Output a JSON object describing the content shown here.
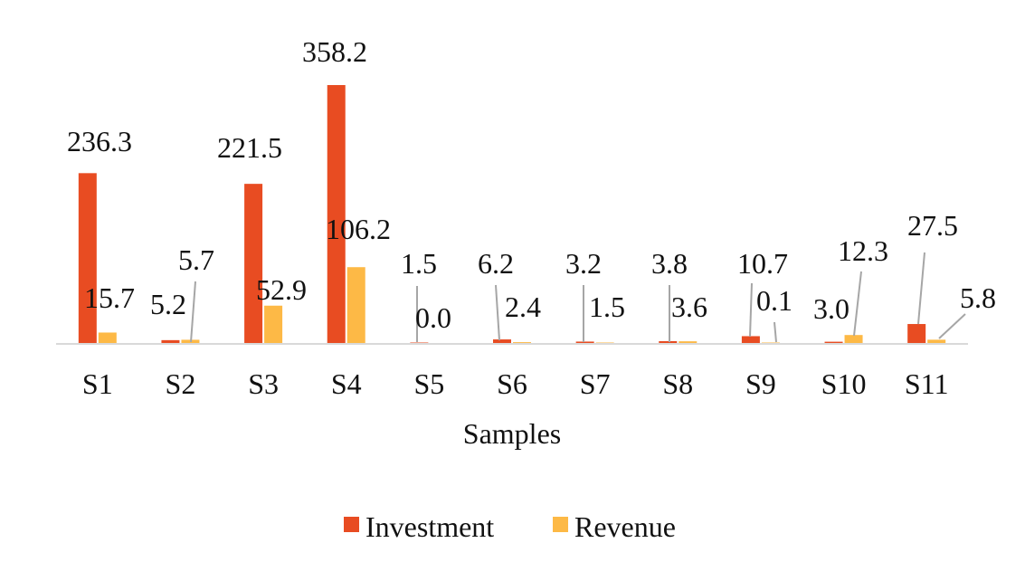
{
  "chart_data": {
    "type": "bar",
    "title": "",
    "xlabel": "Samples",
    "ylabel": "",
    "categories": [
      "S1",
      "S2",
      "S3",
      "S4",
      "S5",
      "S6",
      "S7",
      "S8",
      "S9",
      "S10",
      "S11"
    ],
    "series": [
      {
        "name": "Investment",
        "color": "#E84C22",
        "values": [
          236.3,
          5.2,
          221.5,
          358.2,
          1.5,
          6.2,
          3.2,
          3.8,
          10.7,
          3.0,
          27.5
        ],
        "labels": [
          "236.3",
          "5.2",
          "221.5",
          "358.2",
          "1.5",
          "6.2",
          "3.2",
          "3.8",
          "10.7",
          "3.0",
          "27.5"
        ]
      },
      {
        "name": "Revenue",
        "color": "#FDB946",
        "values": [
          15.7,
          5.7,
          52.9,
          106.2,
          0.0,
          2.4,
          1.5,
          3.6,
          0.1,
          12.3,
          5.8
        ],
        "labels": [
          "15.7",
          "5.7",
          "52.9",
          "106.2",
          "0.0",
          "2.4",
          "1.5",
          "3.6",
          "0.1",
          "12.3",
          "5.8"
        ]
      }
    ],
    "ylim": [
      0,
      360
    ],
    "grid": false,
    "legend_position": "bottom"
  }
}
